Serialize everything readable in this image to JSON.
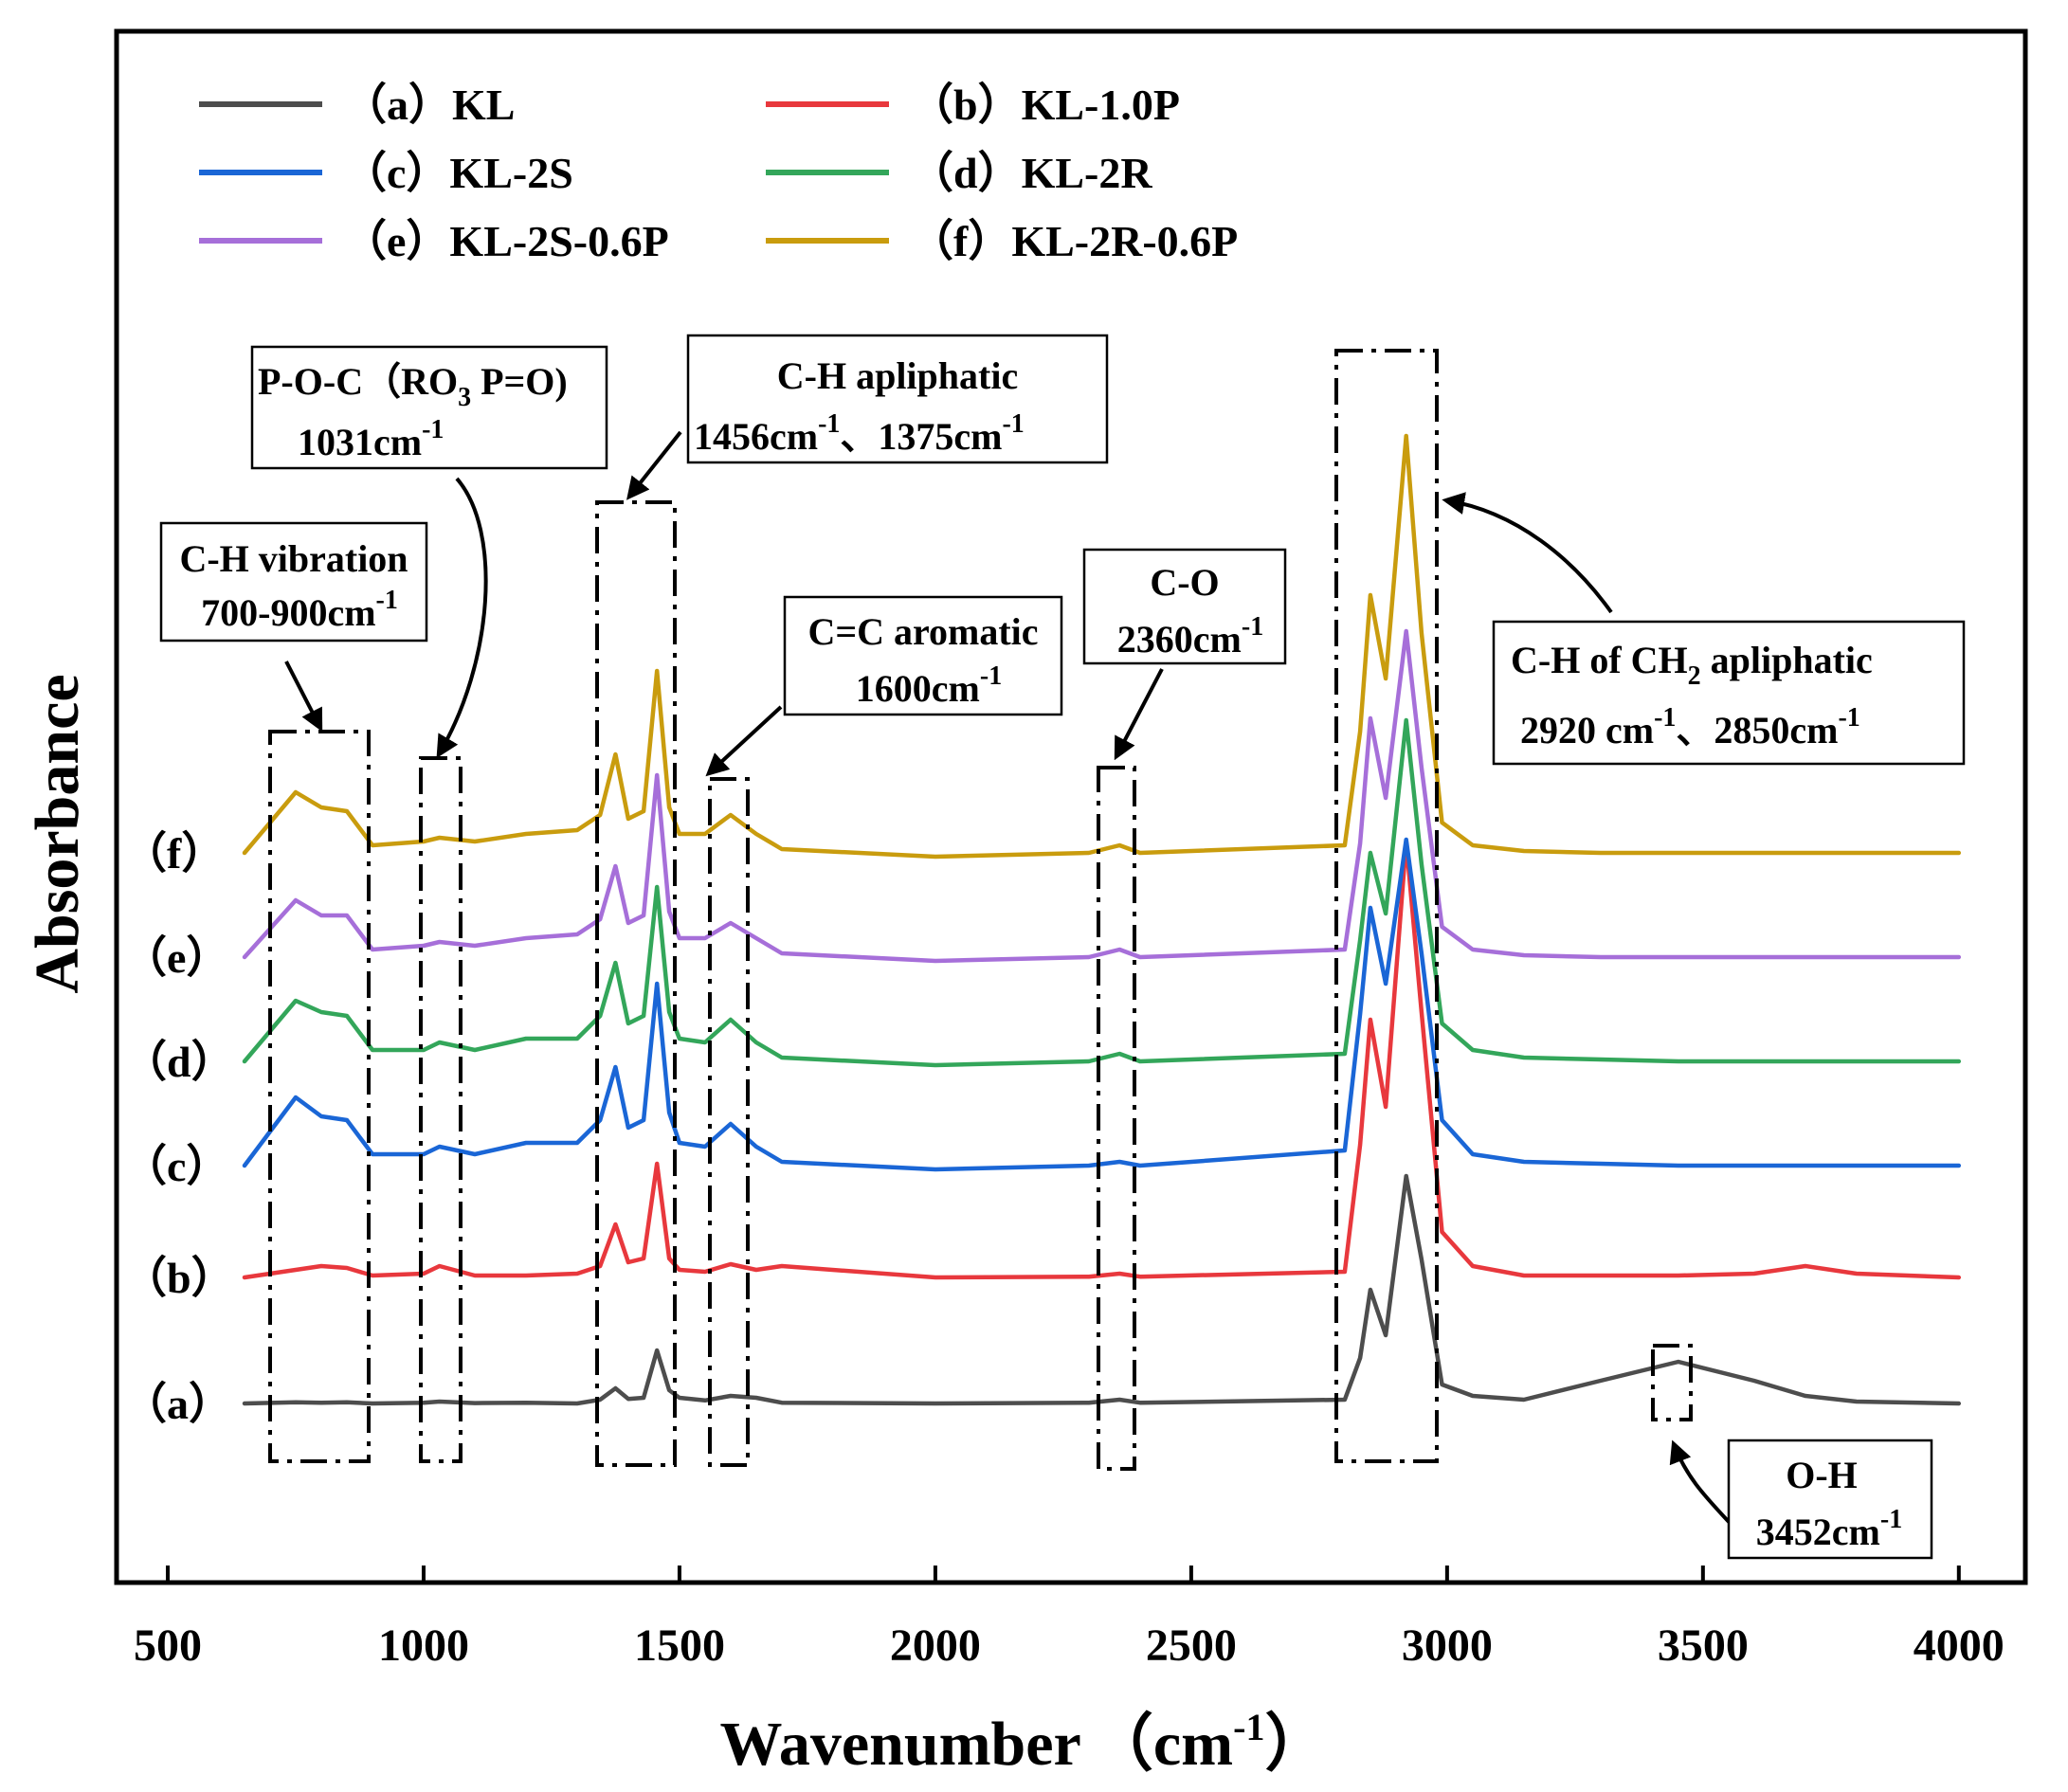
{
  "chart_data": {
    "type": "line",
    "title": "",
    "xlabel": "Wavenumber",
    "xlabel_unit": "（cm",
    "xlabel_unit_sup": "-1",
    "xlabel_unit_close": "）",
    "ylabel": "Absorbance",
    "xlim": [
      400,
      4130
    ],
    "x_ticks": [
      500,
      1000,
      1500,
      2000,
      2500,
      3000,
      3500,
      4000
    ],
    "grid": false,
    "legend_position": "top-left",
    "series": [
      {
        "name": "（a）KL",
        "curve_label": "（a）",
        "color": "#4d4d4d",
        "x": [
          650,
          750,
          800,
          850,
          900,
          1000,
          1031,
          1100,
          1200,
          1300,
          1345,
          1375,
          1400,
          1430,
          1456,
          1480,
          1500,
          1550,
          1600,
          1650,
          1700,
          2000,
          2300,
          2360,
          2400,
          2800,
          2830,
          2850,
          2880,
          2920,
          2950,
          2990,
          3050,
          3150,
          3300,
          3452,
          3600,
          3700,
          3800,
          4000
        ],
        "y": [
          0,
          0.03,
          0.02,
          0.03,
          0,
          0.02,
          0.05,
          0.01,
          0.02,
          0,
          0.1,
          0.4,
          0.12,
          0.15,
          1.4,
          0.35,
          0.15,
          0.08,
          0.2,
          0.15,
          0.02,
          0,
          0.02,
          0.1,
          0.02,
          0.1,
          1.2,
          3.0,
          1.8,
          6.0,
          3.8,
          0.5,
          0.2,
          0.1,
          0.6,
          1.1,
          0.6,
          0.2,
          0.05,
          0
        ]
      },
      {
        "name": "（b）KL-1.0P",
        "curve_label": "（b）",
        "color": "#e8383d",
        "x": [
          650,
          750,
          800,
          850,
          900,
          1000,
          1031,
          1100,
          1200,
          1300,
          1345,
          1375,
          1400,
          1430,
          1456,
          1480,
          1500,
          1550,
          1600,
          1650,
          1700,
          2000,
          2300,
          2360,
          2400,
          2800,
          2830,
          2850,
          2880,
          2920,
          2950,
          2990,
          3050,
          3150,
          3300,
          3452,
          3600,
          3700,
          3800,
          4000
        ],
        "y": [
          0,
          0.2,
          0.3,
          0.25,
          0.05,
          0.1,
          0.3,
          0.05,
          0.05,
          0.1,
          0.3,
          1.4,
          0.4,
          0.5,
          3.0,
          0.5,
          0.2,
          0.15,
          0.35,
          0.2,
          0.3,
          0,
          0.02,
          0.1,
          0.02,
          0.15,
          3.5,
          6.8,
          4.5,
          11.5,
          7.0,
          1.2,
          0.3,
          0.05,
          0.05,
          0.05,
          0.1,
          0.3,
          0.1,
          0
        ]
      },
      {
        "name": "（c）KL-2S",
        "curve_label": "（c）",
        "color": "#1a66d6",
        "x": [
          650,
          750,
          800,
          850,
          900,
          1000,
          1031,
          1100,
          1200,
          1300,
          1345,
          1375,
          1400,
          1430,
          1456,
          1480,
          1500,
          1550,
          1600,
          1650,
          1700,
          2000,
          2300,
          2360,
          2400,
          2800,
          2830,
          2850,
          2880,
          2920,
          2950,
          2990,
          3050,
          3150,
          3300,
          3452,
          3600,
          3700,
          3800,
          4000
        ],
        "y": [
          0,
          1.8,
          1.3,
          1.2,
          0.3,
          0.3,
          0.5,
          0.3,
          0.6,
          0.6,
          1.2,
          2.6,
          1.0,
          1.2,
          4.8,
          1.4,
          0.6,
          0.5,
          1.1,
          0.5,
          0.1,
          -0.1,
          0,
          0.1,
          0,
          0.4,
          4.0,
          6.8,
          4.8,
          8.6,
          5.6,
          1.2,
          0.3,
          0.1,
          0.05,
          0,
          0,
          0,
          0,
          0
        ]
      },
      {
        "name": "（d）KL-2R",
        "curve_label": "（d）",
        "color": "#33a65a",
        "x": [
          650,
          750,
          800,
          850,
          900,
          1000,
          1031,
          1100,
          1200,
          1300,
          1345,
          1375,
          1400,
          1430,
          1456,
          1480,
          1500,
          1550,
          1600,
          1650,
          1700,
          2000,
          2300,
          2360,
          2400,
          2800,
          2830,
          2850,
          2880,
          2920,
          2950,
          2990,
          3050,
          3150,
          3300,
          3452,
          3600,
          3700,
          3800,
          4000
        ],
        "y": [
          0,
          1.6,
          1.3,
          1.2,
          0.3,
          0.3,
          0.5,
          0.3,
          0.6,
          0.6,
          1.2,
          2.6,
          1.0,
          1.2,
          4.6,
          1.3,
          0.6,
          0.5,
          1.1,
          0.5,
          0.1,
          -0.1,
          0,
          0.2,
          0,
          0.2,
          3.2,
          5.5,
          3.9,
          9.0,
          5.2,
          1.0,
          0.3,
          0.1,
          0.05,
          0,
          0,
          0,
          0,
          0
        ]
      },
      {
        "name": "（e）KL-2S-0.6P",
        "curve_label": "（e）",
        "color": "#a66fd9",
        "x": [
          650,
          750,
          800,
          850,
          900,
          1000,
          1031,
          1100,
          1200,
          1300,
          1345,
          1375,
          1400,
          1430,
          1456,
          1480,
          1500,
          1550,
          1600,
          1650,
          1700,
          2000,
          2300,
          2360,
          2400,
          2800,
          2830,
          2850,
          2880,
          2920,
          2950,
          2990,
          3050,
          3150,
          3300,
          3452,
          3600,
          3700,
          3800,
          4000
        ],
        "y": [
          0,
          1.5,
          1.1,
          1.1,
          0.2,
          0.3,
          0.4,
          0.3,
          0.5,
          0.6,
          1.0,
          2.4,
          0.9,
          1.1,
          4.8,
          1.2,
          0.5,
          0.5,
          0.9,
          0.5,
          0.1,
          -0.1,
          0,
          0.2,
          0,
          0.2,
          3.0,
          6.3,
          4.2,
          8.6,
          5.0,
          0.8,
          0.2,
          0.05,
          0,
          0,
          0,
          0,
          0,
          0
        ]
      },
      {
        "name": "（f）KL-2R-0.6P",
        "curve_label": "（f）",
        "color": "#c99c0e",
        "x": [
          650,
          750,
          800,
          850,
          900,
          1000,
          1031,
          1100,
          1200,
          1300,
          1345,
          1375,
          1400,
          1430,
          1456,
          1480,
          1500,
          1550,
          1600,
          1650,
          1700,
          2000,
          2300,
          2360,
          2400,
          2800,
          2830,
          2850,
          2880,
          2920,
          2950,
          2990,
          3050,
          3150,
          3300,
          3452,
          3600,
          3700,
          3800,
          4000
        ],
        "y": [
          0,
          1.6,
          1.2,
          1.1,
          0.2,
          0.3,
          0.4,
          0.3,
          0.5,
          0.6,
          1.0,
          2.6,
          0.9,
          1.1,
          4.8,
          1.2,
          0.5,
          0.5,
          1.0,
          0.5,
          0.1,
          -0.1,
          0,
          0.2,
          0,
          0.2,
          3.2,
          6.8,
          4.6,
          11.0,
          5.8,
          0.8,
          0.2,
          0.05,
          0,
          0,
          0,
          0,
          0,
          0
        ]
      }
    ],
    "annotations": [
      {
        "id": "ch-vibration",
        "lines": [
          "C-H vibration",
          "700-900cm"
        ],
        "sup": "-1"
      },
      {
        "id": "poc",
        "line1_a": "P-O-C（RO",
        "line1_sub": "3",
        "line1_b": " P=O)",
        "line2": "1031cm",
        "sup": "-1"
      },
      {
        "id": "ch-apliphatic",
        "line1": "C-H apliphatic",
        "line2_a": "1456cm",
        "line2_b": "、1375cm",
        "sup": "-1"
      },
      {
        "id": "cc-aromatic",
        "line1": "C=C aromatic",
        "line2": "1600cm",
        "sup": "-1"
      },
      {
        "id": "co",
        "line1": "C-O",
        "line2": "2360cm",
        "sup": "-1"
      },
      {
        "id": "ch2",
        "line1_a": "C-H of CH",
        "line1_sub": "2",
        "line1_b": " apliphatic",
        "line2_a": "2920 cm",
        "line2_b": "、2850cm",
        "sup": "-1"
      },
      {
        "id": "oh",
        "line1": "O-H",
        "line2": "3452cm",
        "sup": "-1"
      }
    ]
  }
}
